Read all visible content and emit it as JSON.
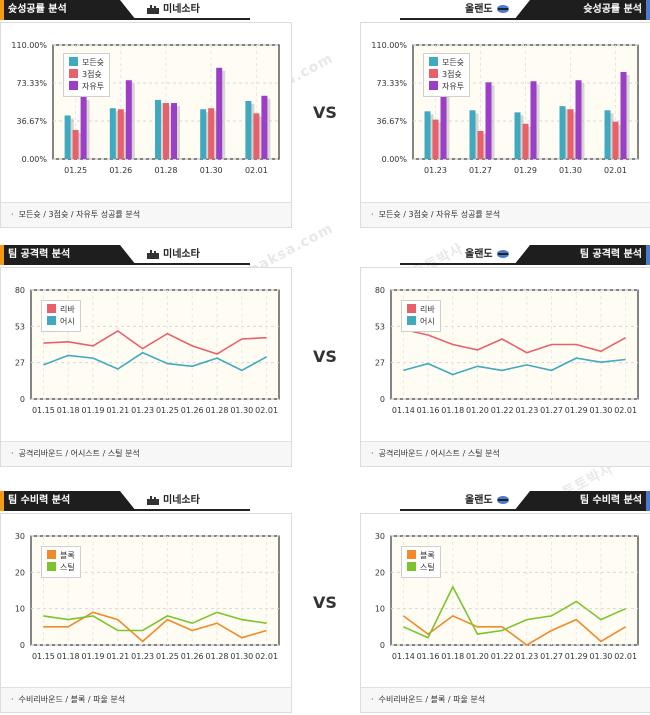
{
  "vs_label": "VS",
  "watermark": [
    "토토박사",
    "totobaksa.com"
  ],
  "sections": [
    {
      "tag": "슛성공률 분석",
      "footer": "모든슛 / 3점슛 / 자유투 성공률 분석",
      "left_team": "미네소타",
      "right_team": "올랜도"
    },
    {
      "tag": "팀 공격력 분석",
      "footer": "공격리바운드 / 어시스트 / 스틸 분석",
      "left_team": "미네소타",
      "right_team": "올랜도"
    },
    {
      "tag": "팀 수비력 분석",
      "footer": "수비리바운드 / 블록 / 파울 분석",
      "left_team": "미네소타",
      "right_team": "올랜도"
    }
  ],
  "colors": {
    "teal": "#3fa9bf",
    "red": "#e8606a",
    "purple": "#9b3fc9",
    "orange": "#f08a2a",
    "green": "#7cc42e",
    "plot_bg": "#fffdf3",
    "accent_left": "#f39c12",
    "accent_right": "#4a7bd0"
  },
  "chart_data": [
    {
      "type": "bar",
      "categories": [
        "01.25",
        "01.26",
        "01.28",
        "01.30",
        "02.01"
      ],
      "ytick_labels": [
        "0.00%",
        "36.67%",
        "73.33%",
        "110.00%"
      ],
      "ylim": [
        0,
        110
      ],
      "series": [
        {
          "name": "모든슛",
          "values": [
            42,
            49,
            57,
            48,
            56
          ]
        },
        {
          "name": "3점슛",
          "values": [
            28,
            48,
            54,
            49,
            44
          ]
        },
        {
          "name": "자유투",
          "values": [
            60,
            76,
            54,
            88,
            61
          ]
        }
      ]
    },
    {
      "type": "bar",
      "categories": [
        "01.23",
        "01.27",
        "01.29",
        "01.30",
        "02.01"
      ],
      "ytick_labels": [
        "0.00%",
        "36.67%",
        "73.33%",
        "110.00%"
      ],
      "ylim": [
        0,
        110
      ],
      "series": [
        {
          "name": "모든슛",
          "values": [
            46,
            47,
            45,
            51,
            47
          ]
        },
        {
          "name": "3점슛",
          "values": [
            38,
            27,
            34,
            48,
            36
          ]
        },
        {
          "name": "자유투",
          "values": [
            80,
            74,
            75,
            76,
            84
          ]
        }
      ]
    },
    {
      "type": "line",
      "categories": [
        "01.15",
        "01.18",
        "01.19",
        "01.21",
        "01.23",
        "01.25",
        "01.26",
        "01.28",
        "01.30",
        "02.01"
      ],
      "ytick_labels": [
        "0",
        "27",
        "53",
        "80"
      ],
      "ylim": [
        0,
        80
      ],
      "series": [
        {
          "name": "리바",
          "values": [
            41,
            42,
            39,
            50,
            37,
            48,
            39,
            33,
            44,
            45
          ]
        },
        {
          "name": "어시",
          "values": [
            25,
            32,
            30,
            22,
            34,
            26,
            24,
            30,
            21,
            31
          ]
        }
      ]
    },
    {
      "type": "line",
      "categories": [
        "01.14",
        "01.16",
        "01.18",
        "01.20",
        "01.22",
        "01.23",
        "01.27",
        "01.29",
        "01.30",
        "02.01"
      ],
      "ytick_labels": [
        "0",
        "27",
        "53",
        "80"
      ],
      "ylim": [
        0,
        80
      ],
      "series": [
        {
          "name": "리바",
          "values": [
            51,
            47,
            40,
            36,
            44,
            34,
            40,
            40,
            35,
            45
          ]
        },
        {
          "name": "어시",
          "values": [
            21,
            26,
            18,
            24,
            21,
            25,
            21,
            30,
            27,
            29
          ]
        }
      ]
    },
    {
      "type": "line",
      "categories": [
        "01.15",
        "01.18",
        "01.19",
        "01.21",
        "01.23",
        "01.25",
        "01.26",
        "01.28",
        "01.30",
        "02.01"
      ],
      "ytick_labels": [
        "0",
        "10",
        "20",
        "30"
      ],
      "ylim": [
        0,
        30
      ],
      "series": [
        {
          "name": "블록",
          "values": [
            5,
            5,
            9,
            7,
            1,
            7,
            4,
            6,
            2,
            4
          ]
        },
        {
          "name": "스틸",
          "values": [
            8,
            7,
            8,
            4,
            4,
            8,
            6,
            9,
            7,
            6
          ]
        }
      ]
    },
    {
      "type": "line",
      "categories": [
        "01.14",
        "01.16",
        "01.18",
        "01.20",
        "01.22",
        "01.23",
        "01.27",
        "01.29",
        "01.30",
        "02.01"
      ],
      "ytick_labels": [
        "0",
        "10",
        "20",
        "30"
      ],
      "ylim": [
        0,
        30
      ],
      "series": [
        {
          "name": "블록",
          "values": [
            8,
            3,
            8,
            5,
            5,
            0,
            4,
            7,
            1,
            5
          ]
        },
        {
          "name": "스틸",
          "values": [
            5,
            2,
            16,
            3,
            4,
            7,
            8,
            12,
            7,
            10
          ]
        }
      ]
    }
  ]
}
